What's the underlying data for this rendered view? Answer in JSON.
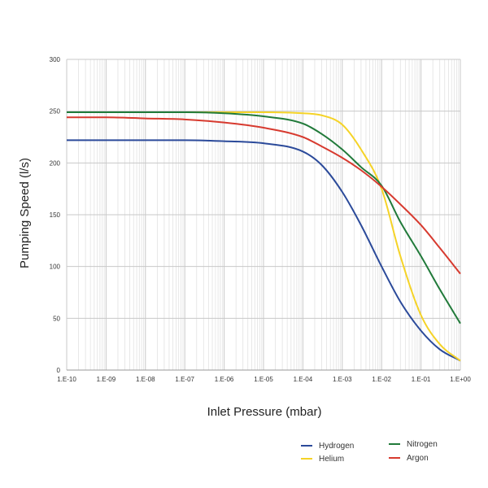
{
  "chart_data": {
    "type": "line",
    "xlabel": "Inlet Pressure (mbar)",
    "ylabel": "Pumping Speed (l/s)",
    "xscale": "log",
    "xlim": [
      1e-10,
      1
    ],
    "ylim": [
      0,
      300
    ],
    "grid": true,
    "legend_position": "bottom-right",
    "x_tick_labels": [
      "1.E-10",
      "1.E-09",
      "1.E-08",
      "1.E-07",
      "1.E-06",
      "1.E-05",
      "1.E-04",
      "1.E-03",
      "1.E-02",
      "1.E-01",
      "1.E+00"
    ],
    "y_tick_labels": [
      "0",
      "50",
      "100",
      "150",
      "200",
      "250",
      "300"
    ],
    "x": [
      1e-10,
      1e-09,
      1e-08,
      1e-07,
      1e-06,
      1e-05,
      0.0001,
      0.0003,
      0.001,
      0.003,
      0.01,
      0.03,
      0.1,
      0.3,
      1
    ],
    "series": [
      {
        "name": "Hydrogen",
        "color": "#2b4a9a",
        "values": [
          222,
          222,
          222,
          222,
          221,
          219,
          211,
          198,
          172,
          140,
          100,
          66,
          38,
          20,
          9
        ]
      },
      {
        "name": "Helium",
        "color": "#f5d327",
        "values": [
          249,
          249,
          249,
          249,
          249,
          249,
          248,
          246,
          237,
          213,
          175,
          110,
          53,
          25,
          9
        ]
      },
      {
        "name": "Nitrogen",
        "color": "#217a3a",
        "values": [
          249,
          249,
          249,
          249,
          248,
          245,
          238,
          228,
          213,
          196,
          178,
          143,
          110,
          78,
          45
        ]
      },
      {
        "name": "Argon",
        "color": "#d73a2f",
        "values": [
          244,
          244,
          243,
          242,
          239,
          234,
          225,
          216,
          205,
          193,
          177,
          160,
          140,
          118,
          93
        ]
      }
    ]
  }
}
